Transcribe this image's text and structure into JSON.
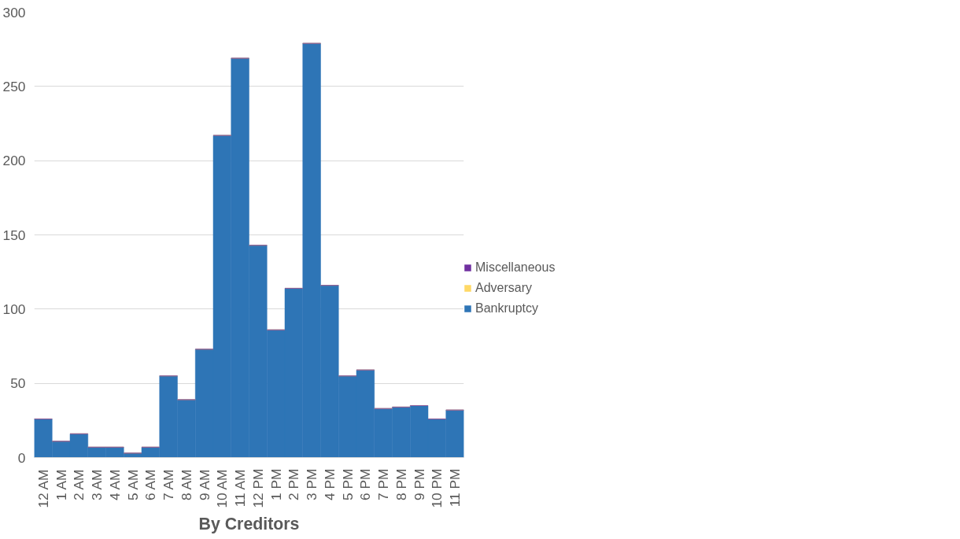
{
  "chart_data": {
    "type": "bar",
    "stacked": true,
    "xlabel": "By Creditors",
    "categories": [
      "12 AM",
      "1 AM",
      "2 AM",
      "3 AM",
      "4 AM",
      "5 AM",
      "6 AM",
      "7 AM",
      "8 AM",
      "9 AM",
      "10 AM",
      "11 AM",
      "12 PM",
      "1 PM",
      "2 PM",
      "3 PM",
      "4 PM",
      "5 PM",
      "6 PM",
      "7 PM",
      "8 PM",
      "9 PM",
      "10 PM",
      "11 PM"
    ],
    "series": [
      {
        "name": "Bankruptcy",
        "color": "#2e75b6",
        "values": [
          26,
          11,
          16,
          7,
          7,
          3,
          7,
          55,
          39,
          73,
          217,
          269,
          143,
          86,
          114,
          279,
          116,
          55,
          59,
          33,
          34,
          35,
          26,
          32
        ]
      },
      {
        "name": "Adversary",
        "color": "#ffd966",
        "values": [
          0,
          0,
          0,
          0,
          0,
          0,
          0,
          0,
          0,
          0,
          0,
          0,
          0,
          0,
          0,
          0,
          0,
          0,
          0,
          0,
          0,
          0,
          0,
          0
        ]
      },
      {
        "name": "Miscellaneous",
        "color": "#7030a0",
        "values": [
          0,
          0,
          0,
          0,
          0,
          0,
          0,
          0,
          0,
          0,
          0,
          0,
          0,
          0,
          0,
          0,
          0,
          0,
          0,
          0,
          0,
          0,
          0,
          0
        ]
      }
    ],
    "ylim": [
      0,
      300
    ],
    "yticks": [
      0,
      50,
      100,
      150,
      200,
      250,
      300
    ],
    "grid": "y",
    "legend": "right"
  }
}
